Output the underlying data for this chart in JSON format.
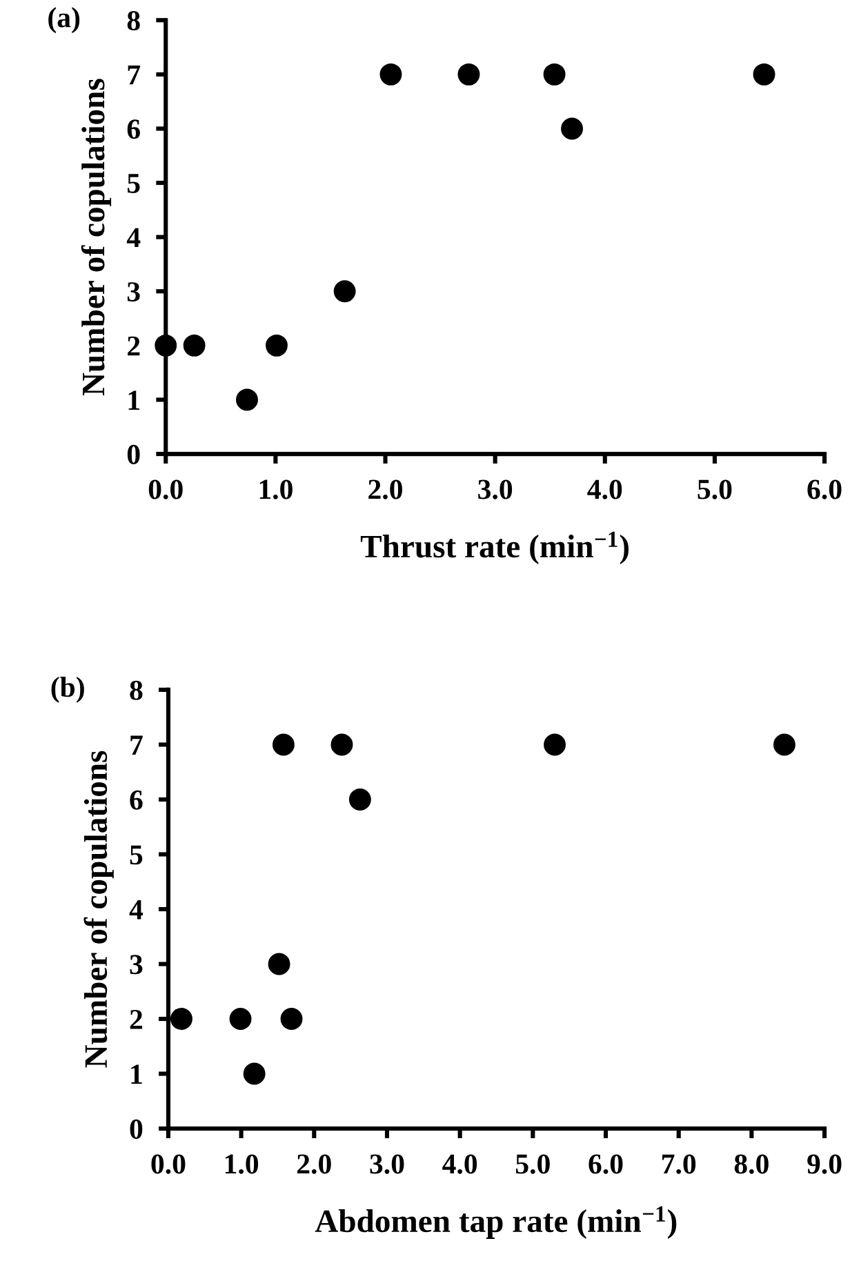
{
  "chart_data": [
    {
      "type": "scatter",
      "title": "(a)",
      "xlabel": "Thrust rate (min$^{−1}$)",
      "ylabel": "Number of copulations",
      "marker": "circle",
      "grid": false,
      "legend": false,
      "series": [
        {
          "color": "#000000",
          "x": [
            0,
            0.26,
            0.74,
            1.01,
            1.63,
            2.05,
            2.76,
            3.54,
            3.7,
            5.45
          ],
          "values": [
            2,
            2,
            1,
            2,
            3,
            7,
            7,
            7,
            6,
            7
          ]
        }
      ],
      "xlim": [
        0,
        6
      ],
      "xticks": [
        {
          "value": 0,
          "label": "0.0"
        },
        {
          "value": 1,
          "label": "1.0"
        },
        {
          "value": 2,
          "label": "2.0"
        },
        {
          "value": 3,
          "label": "3.0"
        },
        {
          "value": 4,
          "label": "4.0"
        },
        {
          "value": 5,
          "label": "5.0"
        },
        {
          "value": 6,
          "label": "6.0"
        }
      ],
      "ylim": [
        0,
        8
      ],
      "yticks": [
        0,
        1,
        2,
        3,
        4,
        5,
        6,
        7,
        8
      ]
    },
    {
      "type": "scatter",
      "title": "(b)",
      "xlabel": "Abdomen tap rate (min$^{−1}$)",
      "ylabel": "Number of copulations",
      "marker": "circle",
      "grid": false,
      "legend": false,
      "series": [
        {
          "color": "#000000",
          "x": [
            0.18,
            0.99,
            1.18,
            1.52,
            1.58,
            1.69,
            2.38,
            2.63,
            5.3,
            8.45
          ],
          "values": [
            2,
            2,
            1,
            3,
            7,
            2,
            7,
            6,
            7,
            7
          ]
        }
      ],
      "xlim": [
        0,
        9
      ],
      "xticks": [
        {
          "value": 0,
          "label": "0.0"
        },
        {
          "value": 1,
          "label": "1.0"
        },
        {
          "value": 2,
          "label": "2.0"
        },
        {
          "value": 3,
          "label": "3.0"
        },
        {
          "value": 4,
          "label": "4.0"
        },
        {
          "value": 5,
          "label": "5.0"
        },
        {
          "value": 6,
          "label": "6.0"
        },
        {
          "value": 7,
          "label": "7.0"
        },
        {
          "value": 8,
          "label": "8.0"
        },
        {
          "value": 9,
          "label": "9.0"
        }
      ],
      "ylim": [
        0,
        8
      ],
      "yticks": [
        0,
        1,
        2,
        3,
        4,
        5,
        6,
        7,
        8
      ]
    }
  ]
}
